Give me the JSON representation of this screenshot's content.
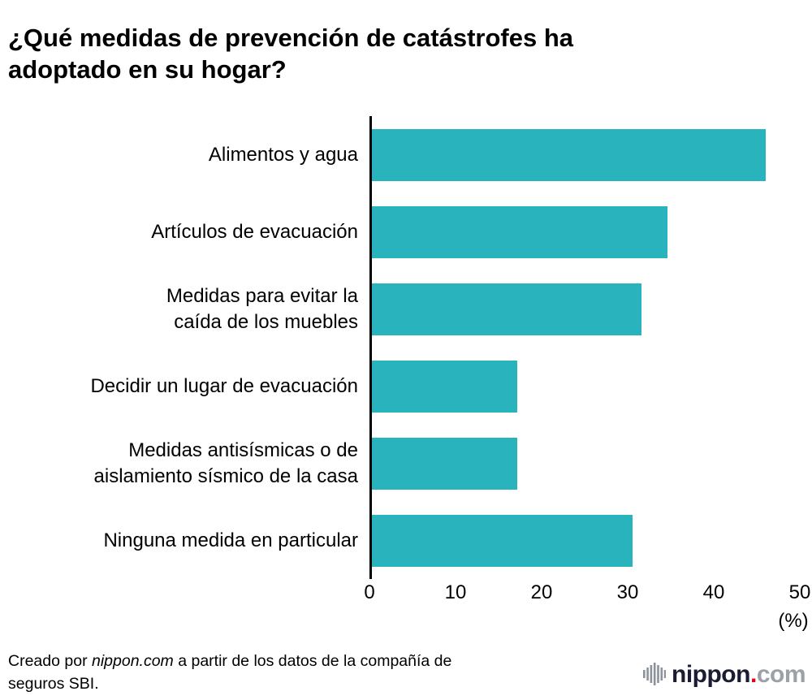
{
  "title_lines": [
    "¿Qué medidas de prevención de catástrofes ha",
    "adoptado en su hogar?"
  ],
  "chart_data": {
    "type": "bar",
    "orientation": "horizontal",
    "title": "¿Qué medidas de prevención de catástrofes ha adoptado en su hogar?",
    "categories": [
      "Alimentos y agua",
      "Artículos de evacuación",
      "Medidas para evitar la\ncaída de los muebles",
      "Decidir un lugar de evacuación",
      "Medidas antisísmicas o de\naislamiento sísmico de la casa",
      "Ninguna medida en particular"
    ],
    "values": [
      46,
      34.5,
      31.5,
      17,
      17,
      30.5
    ],
    "xlim": [
      0,
      50
    ],
    "xticks": [
      0,
      10,
      20,
      30,
      40,
      50
    ],
    "x_unit_label": "(%)",
    "bar_color": "#29b4bd",
    "axis_color": "#000000",
    "grid": false,
    "legend": "none"
  },
  "footer": {
    "credit_prefix": "Creado por ",
    "credit_brand": "nippon.com",
    "credit_suffix": " a partir de los datos de la compañía de seguros SBI.",
    "logo": {
      "brand": "nippon",
      "dot": ".",
      "tld": "com",
      "brand_color": "#1b1b33",
      "dot_color": "#e60012",
      "tld_color": "#9ba1a6",
      "icon": "soundwave-bars-icon"
    }
  }
}
